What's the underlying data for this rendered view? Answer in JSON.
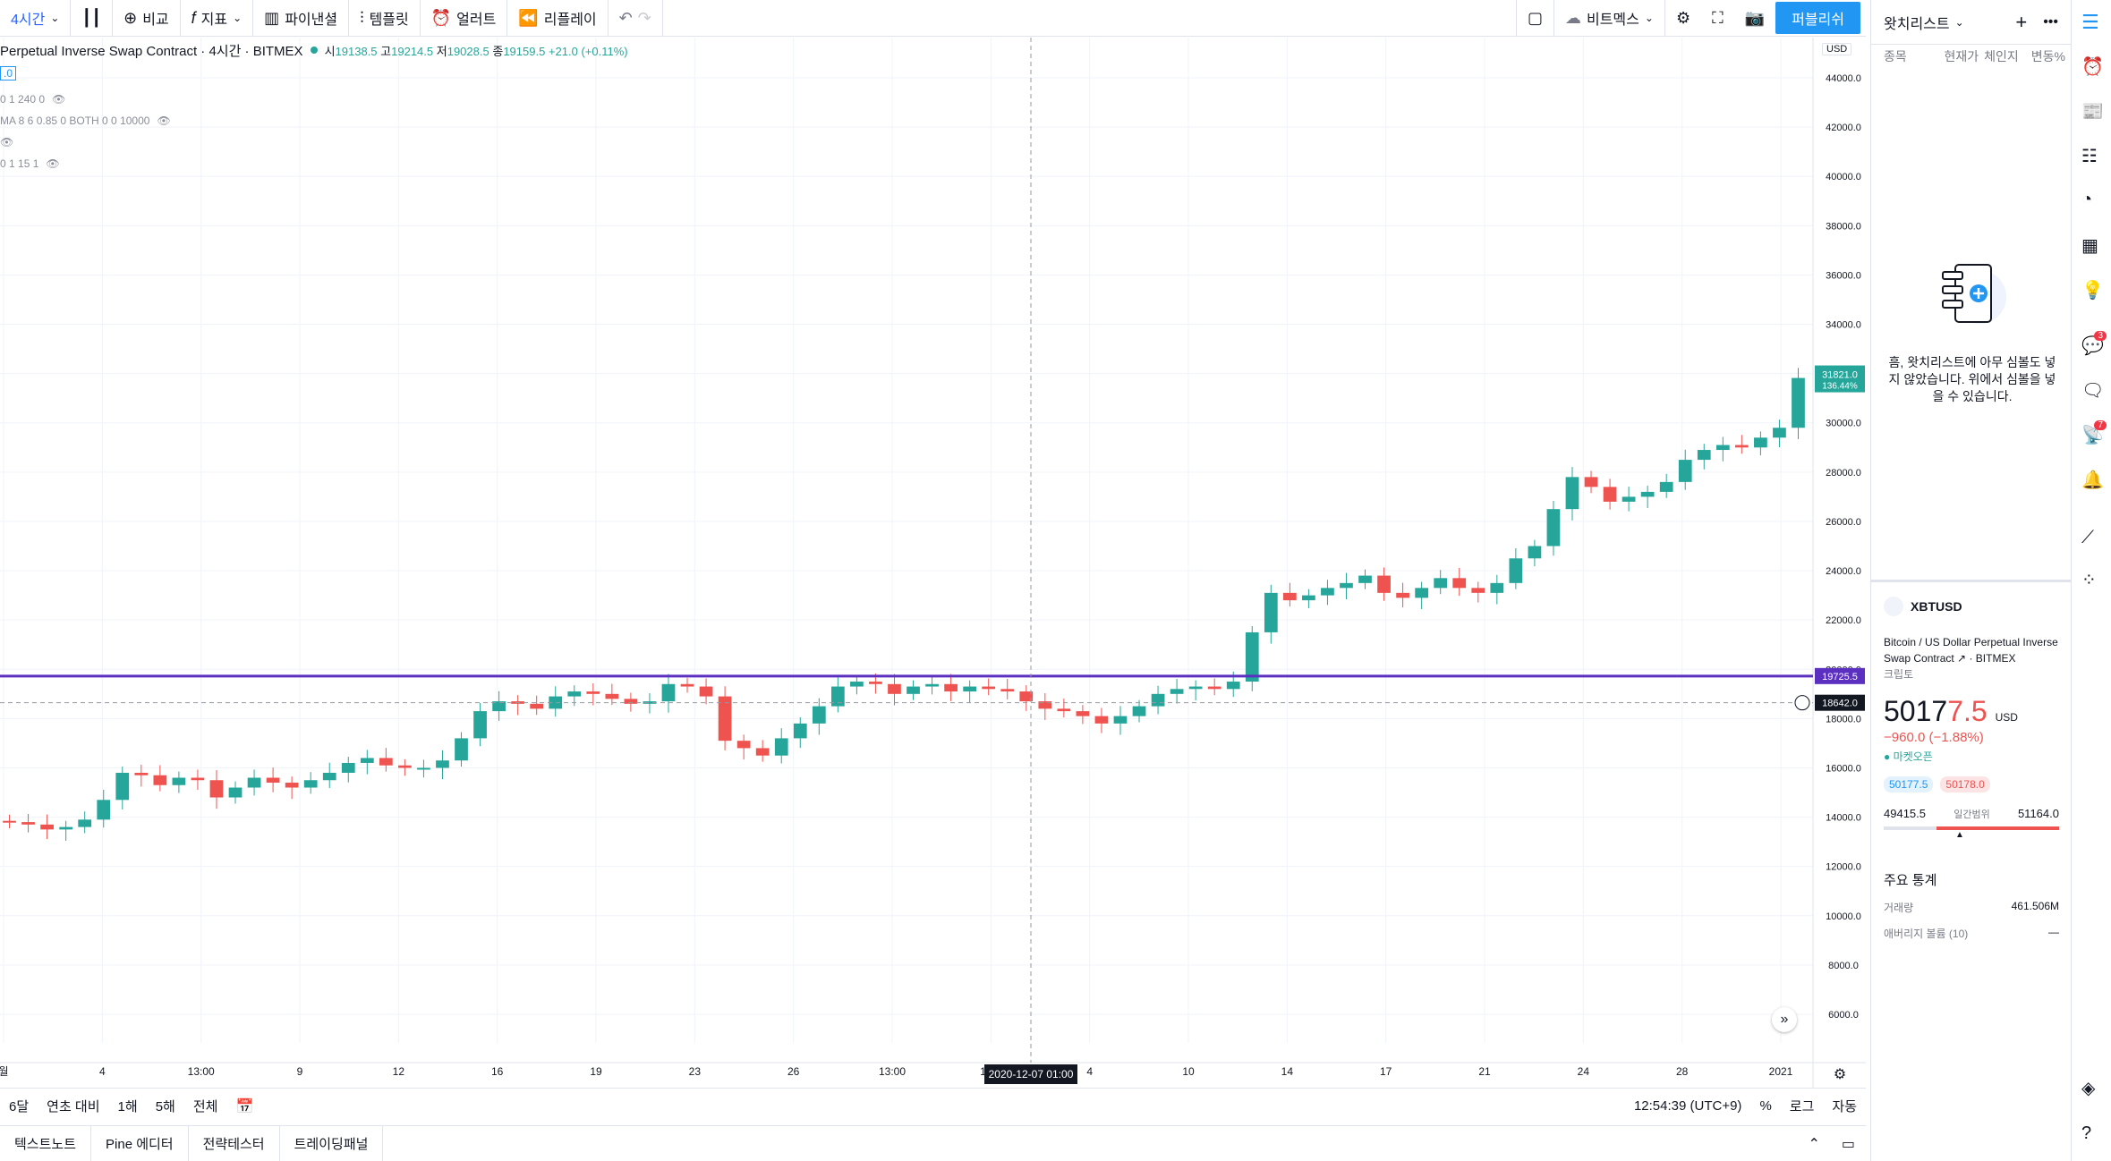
{
  "toolbar": {
    "interval": "4시간",
    "compare": "비교",
    "indicators": "지표",
    "financials": "파이낸셜",
    "templates": "템플릿",
    "alert": "얼러트",
    "replay": "리플레이",
    "layout_name": "비트멕스",
    "publish": "퍼블리쉬"
  },
  "legend": {
    "symbol": "Perpetual Inverse Swap Contract · 4시간 · BITMEX",
    "o_label": "시",
    "o": "19138.5",
    "h_label": "고",
    "h": "19214.5",
    "l_label": "저",
    "l": "19028.5",
    "c_label": "종",
    "c": "19159.5",
    "change": "+21.0 (+0.11%)"
  },
  "indicators": [
    {
      "text": "0 1 240 0"
    },
    {
      "text": "MA 8 6 0.85 0 BOTH 0 0 10000"
    },
    {
      "text": "0 1 15 1"
    }
  ],
  "indicator_badge": ".0",
  "price_axis": {
    "currency": "USD",
    "ticks": [
      "44000.0",
      "42000.0",
      "40000.0",
      "38000.0",
      "36000.0",
      "34000.0",
      "32000.0",
      "30000.0",
      "28000.0",
      "26000.0",
      "24000.0",
      "22000.0",
      "20000.0",
      "18000.0",
      "16000.0",
      "14000.0",
      "12000.0",
      "10000.0",
      "8000.0",
      "6000.0"
    ],
    "last_price": "31821.0",
    "last_pct": "136.44%",
    "line_price": "19725.5",
    "cross_price": "18642.0"
  },
  "time_axis": {
    "labels": [
      "월",
      "4",
      "13:00",
      "9",
      "12",
      "16",
      "19",
      "23",
      "26",
      "13:00",
      "12월",
      "4",
      "10",
      "14",
      "17",
      "21",
      "24",
      "28",
      "2021"
    ],
    "crosshair": "2020-12-07   01:00"
  },
  "chart_data": {
    "type": "candlestick",
    "ylim": [
      5000,
      45000
    ],
    "horizontal_line": 19725.5,
    "crosshair_price": 18642.0,
    "last": 31821.0,
    "series": [
      {
        "name": "close",
        "values": [
          13800,
          13700,
          13500,
          13600,
          13900,
          14700,
          15800,
          15700,
          15300,
          15600,
          15500,
          14800,
          15200,
          15600,
          15400,
          15200,
          15500,
          15800,
          16200,
          16400,
          16100,
          16000,
          16000,
          16300,
          17200,
          18300,
          18700,
          18600,
          18400,
          18900,
          19100,
          19000,
          18800,
          18600,
          18700,
          19400,
          19300,
          18900,
          17100,
          16800,
          16500,
          17200,
          17800,
          18500,
          19300,
          19500,
          19400,
          19000,
          19300,
          19400,
          19100,
          19300,
          19200,
          19100,
          18700,
          18400,
          18300,
          18100,
          17800,
          18100,
          18500,
          19000,
          19200,
          19300,
          19200,
          19500,
          21500,
          23100,
          22800,
          23000,
          23300,
          23500,
          23800,
          23100,
          22900,
          23300,
          23700,
          23300,
          23100,
          23500,
          24500,
          25000,
          26500,
          27800,
          27400,
          26800,
          27000,
          27200,
          27600,
          28500,
          28900,
          29100,
          29000,
          29400,
          29800,
          31821
        ]
      }
    ]
  },
  "bottom": {
    "ranges": [
      "6달",
      "연초 대비",
      "1해",
      "5해",
      "전체"
    ],
    "clock": "12:54:39 (UTC+9)",
    "pct": "%",
    "log": "로그",
    "auto": "자동",
    "tabs": [
      "텍스트노트",
      "Pine 에디터",
      "전략테스터",
      "트레이딩패널"
    ]
  },
  "watchlist": {
    "title": "왓치리스트",
    "col_symbol": "종목",
    "col_price": "현재가",
    "col_chain": "체인지",
    "col_pct": "변동%",
    "empty": "흠, 왓치리스트에 아무 심볼도 넣지 않았습니다. 위에서 심볼을 넣을 수 있습니다."
  },
  "symbol": {
    "ticker": "XBTUSD",
    "desc": "Bitcoin / US Dollar Perpetual Inverse Swap Contract",
    "exchange": "BITMEX",
    "type": "크립토",
    "price_main": "5017",
    "price_tail": "7.5",
    "currency": "USD",
    "change": "−960.0 (−1.88%)",
    "market": "마켓오픈",
    "bid": "50177.5",
    "ask": "50178.0",
    "low": "49415.5",
    "range_label": "일간범위",
    "high": "51164.0",
    "stats_title": "주요 통계",
    "volume_label": "거래량",
    "volume": "461.506M",
    "avg_label": "애버리지 볼륨 (10)",
    "avg": "—"
  },
  "badges": {
    "ideas": "3",
    "streams": "7"
  }
}
